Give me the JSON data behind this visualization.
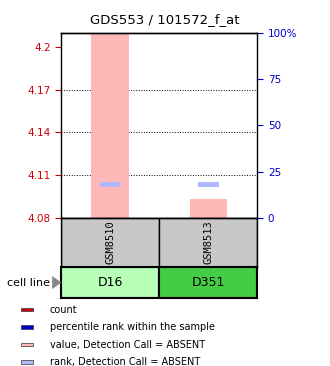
{
  "title": "GDS553 / 101572_f_at",
  "y_left_ticks": [
    4.08,
    4.11,
    4.14,
    4.17,
    4.2
  ],
  "y_left_labels": [
    "4.08",
    "4.11",
    "4.14",
    "4.17",
    "4.2"
  ],
  "y_right_ticks_pct": [
    0,
    25,
    50,
    75,
    100
  ],
  "y_right_labels": [
    "0",
    "25",
    "50",
    "75",
    "100%"
  ],
  "ylim": [
    4.08,
    4.21
  ],
  "ylim_range": 0.13,
  "samples": [
    "GSM8510",
    "GSM8513"
  ],
  "cell_lines": [
    "D16",
    "D351"
  ],
  "cell_line_colors": [
    "#b8ffb8",
    "#44cc44"
  ],
  "bar_color_absent": "#ffb8b8",
  "rank_color_absent": "#b0b8ff",
  "bar_values": [
    4.21,
    4.093
  ],
  "rank_values": [
    4.1035,
    4.1035
  ],
  "bar_bottom": 4.08,
  "left_color": "#cc0000",
  "right_color": "#0000cc",
  "box_color": "#c8c8c8",
  "legend_items": [
    {
      "color": "#cc0000",
      "label": "count"
    },
    {
      "color": "#0000cc",
      "label": "percentile rank within the sample"
    },
    {
      "color": "#ffb8b8",
      "label": "value, Detection Call = ABSENT"
    },
    {
      "color": "#b0b8ff",
      "label": "rank, Detection Call = ABSENT"
    }
  ]
}
